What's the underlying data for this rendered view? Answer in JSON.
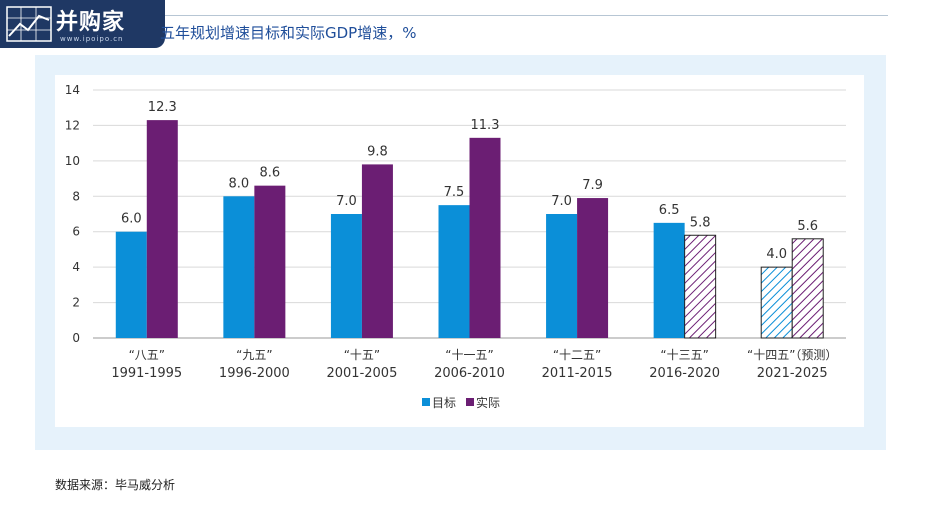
{
  "header": {
    "logo_text": "并购家",
    "logo_url": "www.ipoipo.cn",
    "title": "五年规划增速目标和实际GDP增速，%"
  },
  "footer": {
    "source": "数据来源：毕马威分析"
  },
  "colors": {
    "target": "#0b8fd8",
    "actual": "#6b1e73",
    "accent_title": "#1f4e9a",
    "panel_bg": "#e6f2fb"
  },
  "chart_data": {
    "type": "bar",
    "categories": [
      {
        "name": "“八五”",
        "years": "1991-1995"
      },
      {
        "name": "“九五”",
        "years": "1996-2000"
      },
      {
        "name": "“十五”",
        "years": "2001-2005"
      },
      {
        "name": "“十一五”",
        "years": "2006-2010"
      },
      {
        "name": "“十二五”",
        "years": "2011-2015"
      },
      {
        "name": "“十三五”",
        "years": "2016-2020"
      },
      {
        "name": "“十四五”（预测）",
        "years": "2021-2025"
      }
    ],
    "series": [
      {
        "name": "目标",
        "values": [
          6.0,
          8.0,
          7.0,
          7.5,
          7.0,
          6.5,
          4.0
        ],
        "hatched": [
          false,
          false,
          false,
          false,
          false,
          false,
          true
        ]
      },
      {
        "name": "实际",
        "values": [
          12.3,
          8.6,
          9.8,
          11.3,
          7.9,
          5.8,
          5.6
        ],
        "hatched": [
          false,
          false,
          false,
          false,
          false,
          true,
          true
        ]
      }
    ],
    "ylim": [
      0,
      14
    ],
    "yticks": [
      0,
      2,
      4,
      6,
      8,
      10,
      12,
      14
    ],
    "grid": true,
    "legend_position": "bottom-center"
  }
}
